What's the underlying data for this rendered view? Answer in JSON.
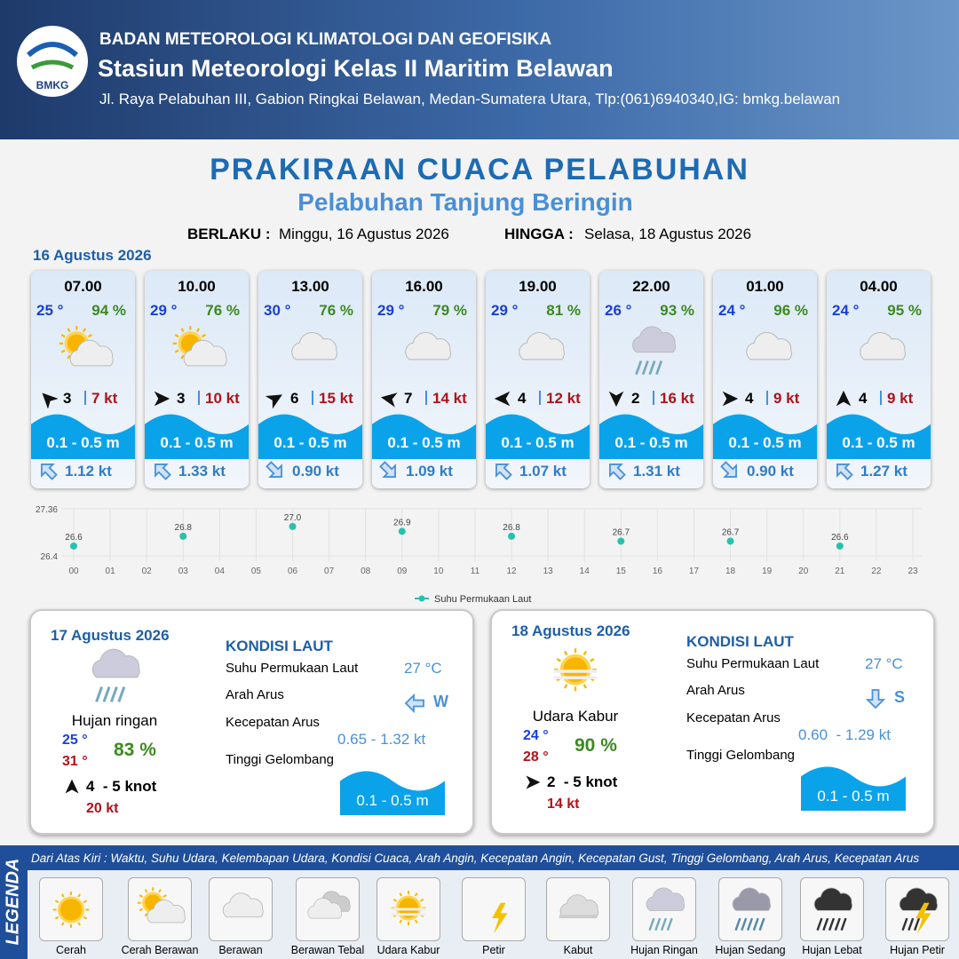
{
  "header": {
    "agency": "BADAN METEOROLOGI KLIMATOLOGI DAN GEOFISIKA",
    "station": "Stasiun Meteorologi Kelas II Maritim Belawan",
    "address": "Jl. Raya Pelabuhan III, Gabion Ringkai Belawan, Medan-Sumatera Utara, Tlp:(061)6940340,IG: bmkg.belawan",
    "logo": "BMKG"
  },
  "title": "PRAKIRAAN CUACA PELABUHAN",
  "subtitle": "Pelabuhan Tanjung Beringin",
  "validity": {
    "from_label": "BERLAKU :",
    "from": "Minggu, 16 Agustus 2026",
    "to_label": "HINGGA :",
    "to": "Selasa, 18 Agustus 2026"
  },
  "day1": {
    "date": "16 Agustus 2026",
    "slots": [
      {
        "time": "07.00",
        "temp": "25 °",
        "humidity": "94 %",
        "wind": "3",
        "gust": "7 kt",
        "wave": "0.1 - 0.5 m",
        "current": "1.12 kt"
      },
      {
        "time": "10.00",
        "temp": "29 °",
        "humidity": "76 %",
        "wind": "3",
        "gust": "10 kt",
        "wave": "0.1 - 0.5 m",
        "current": "1.33 kt"
      },
      {
        "time": "13.00",
        "temp": "30 °",
        "humidity": "76 %",
        "wind": "6",
        "gust": "15 kt",
        "wave": "0.1 - 0.5 m",
        "current": "0.90 kt"
      },
      {
        "time": "16.00",
        "temp": "29 °",
        "humidity": "79 %",
        "wind": "7",
        "gust": "14 kt",
        "wave": "0.1 - 0.5 m",
        "current": "1.09 kt"
      },
      {
        "time": "19.00",
        "temp": "29 °",
        "humidity": "81 %",
        "wind": "4",
        "gust": "12 kt",
        "wave": "0.1 - 0.5 m",
        "current": "1.07 kt"
      },
      {
        "time": "22.00",
        "temp": "26 °",
        "humidity": "93 %",
        "wind": "2",
        "gust": "16 kt",
        "wave": "0.1 - 0.5 m",
        "current": "1.31 kt"
      },
      {
        "time": "01.00",
        "temp": "24 °",
        "humidity": "96 %",
        "wind": "4",
        "gust": "9 kt",
        "wave": "0.1 - 0.5 m",
        "current": "0.90 kt"
      },
      {
        "time": "04.00",
        "temp": "24 °",
        "humidity": "95 %",
        "wind": "4",
        "gust": "9 kt",
        "wave": "0.1 - 0.5 m",
        "current": "1.27 kt"
      }
    ]
  },
  "chart_data": {
    "type": "scatter",
    "x": [
      0,
      3,
      6,
      9,
      12,
      15,
      18,
      21
    ],
    "series": [
      {
        "name": "Suhu Permukaan Laut",
        "color": "#26c2ad",
        "values": [
          26.6,
          26.8,
          27.0,
          26.9,
          26.8,
          26.7,
          26.7,
          26.6
        ],
        "value_labels": [
          "26.6",
          "26.8",
          "27.0",
          "26.9",
          "26.8",
          "26.7",
          "26.7",
          "26.6"
        ]
      }
    ],
    "xlim": [
      0,
      23
    ],
    "xticks": [
      {
        "value": 0,
        "label": "00"
      },
      {
        "value": 1,
        "label": "01"
      },
      {
        "value": 2,
        "label": "02"
      },
      {
        "value": 3,
        "label": "03"
      },
      {
        "value": 4,
        "label": "04"
      },
      {
        "value": 5,
        "label": "05"
      },
      {
        "value": 6,
        "label": "06"
      },
      {
        "value": 7,
        "label": "07"
      },
      {
        "value": 8,
        "label": "08"
      },
      {
        "value": 9,
        "label": "09"
      },
      10,
      11,
      12,
      13,
      14,
      15,
      16,
      17,
      18,
      19,
      20,
      21,
      22,
      23
    ],
    "ylim": [
      26.4,
      27.36
    ],
    "yticks": [
      26.4,
      27.36
    ],
    "grid": true
  },
  "days": [
    {
      "date": "17 Agustus 2026",
      "condition": "Hujan ringan",
      "temp_min": "25 °",
      "temp_max": "31 °",
      "humidity": "83 %",
      "wind": "4  - 5 knot",
      "gust": "20 kt",
      "sea": {
        "heading": "KONDISI LAUT",
        "sst_label": "Suhu Permukaan Laut",
        "sst": "27 °C",
        "dir_label": "Arah Arus",
        "dir": "W",
        "speed_label": "Kecepatan Arus",
        "speed": "0.65 - 1.32 kt",
        "wave_label": "Tinggi Gelombang",
        "wave": "0.1 - 0.5 m"
      }
    },
    {
      "date": "18 Agustus 2026",
      "condition": "Udara Kabur",
      "temp_min": "24 °",
      "temp_max": "28 °",
      "humidity": "90 %",
      "wind": "2  - 5 knot",
      "gust": "14 kt",
      "sea": {
        "heading": "KONDISI LAUT",
        "sst_label": "Suhu Permukaan Laut",
        "sst": "27 °C",
        "dir_label": "Arah Arus",
        "dir": "S",
        "speed_label": "Kecepatan Arus",
        "speed": "0.60  - 1.29 kt",
        "wave_label": "Tinggi Gelombang",
        "wave": "0.1 - 0.5 m"
      }
    }
  ],
  "legend": {
    "title": "LEGENDA",
    "description": "Dari Atas Kiri : Waktu, Suhu Udara, Kelembapan Udara, Kondisi Cuaca, Arah Angin, Kecepatan Angin, Kecepatan Gust, Tinggi Gelombang, Arah Arus, Kecepatan Arus",
    "items": [
      "Cerah",
      "Cerah Berawan",
      "Berawan",
      "Berawan Tebal",
      "Udara Kabur",
      "Petir",
      "Kabut",
      "Hujan Ringan",
      "Hujan Sedang",
      "Hujan Lebat",
      "Hujan Petir"
    ]
  }
}
